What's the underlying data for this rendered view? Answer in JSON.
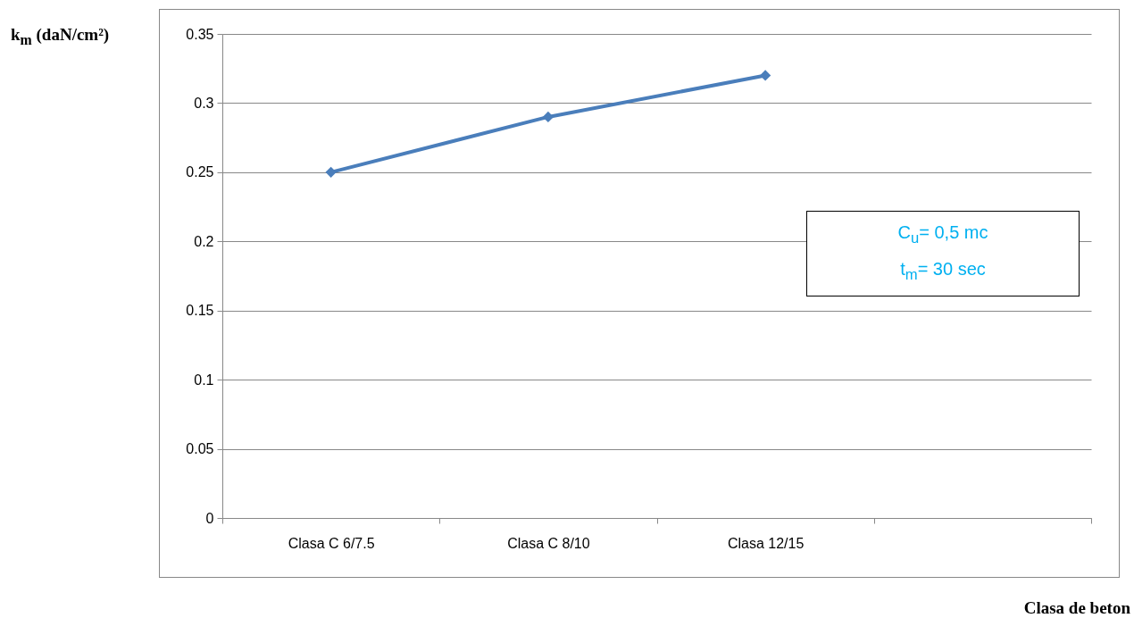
{
  "chart_data": {
    "type": "line",
    "ylabel": "k$_{m}$ (daN/cm²)",
    "xlabel": "Clasa de beton",
    "categories": [
      "Clasa C 6/7.5",
      "Clasa C 8/10",
      "Clasa 12/15",
      null
    ],
    "series": [
      {
        "color": "#4a7ebb",
        "values": [
          0.25,
          0.29,
          0.32,
          null
        ]
      }
    ],
    "ylim": [
      0,
      0.35
    ],
    "yticks": [
      0,
      0.05,
      0.1,
      0.15,
      0.2,
      0.25,
      0.3,
      0.35
    ],
    "grid": "y",
    "marker": "diamond",
    "line_style": "solid",
    "annotations": [
      "C$_{u}$= 0,5 mc",
      "t$_{m}$= 30 sec"
    ]
  }
}
